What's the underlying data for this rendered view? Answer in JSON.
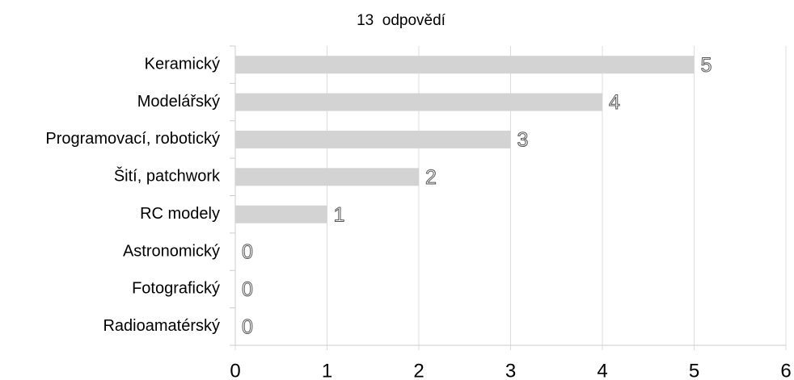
{
  "chart_data": {
    "type": "bar",
    "orientation": "horizontal",
    "title": "13  odpovědí",
    "categories": [
      "Keramický",
      "Modelářský",
      "Programovací, robotický",
      "Šití, patchwork",
      "RC modely",
      "Astronomický",
      "Fotografický",
      "Radioamatérský"
    ],
    "values": [
      5,
      4,
      3,
      2,
      1,
      0,
      0,
      0
    ],
    "color": "#d3d3d3",
    "xlim": [
      0,
      6
    ],
    "xticks": [
      0,
      1,
      2,
      3,
      4,
      5,
      6
    ],
    "grid": true
  }
}
